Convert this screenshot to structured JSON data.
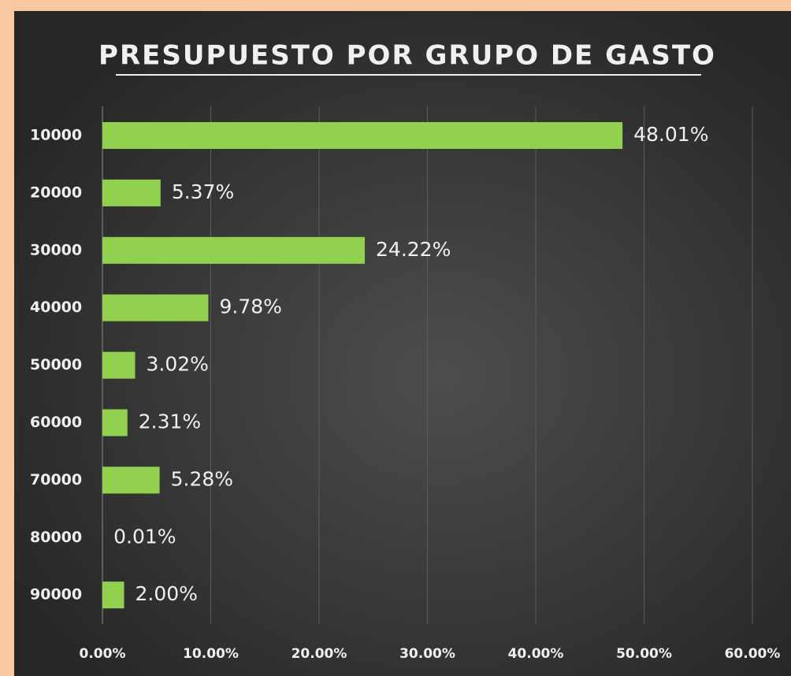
{
  "chart_data": {
    "type": "barh",
    "title": "PRESUPUESTO POR GRUPO DE GASTO",
    "categories": [
      "10000",
      "20000",
      "30000",
      "40000",
      "50000",
      "60000",
      "70000",
      "80000",
      "90000"
    ],
    "values": [
      48.01,
      5.37,
      24.22,
      9.78,
      3.02,
      2.31,
      5.28,
      0.01,
      2.0
    ],
    "value_labels": [
      "48.01%",
      "5.37%",
      "24.22%",
      "9.78%",
      "3.02%",
      "2.31%",
      "5.28%",
      "0.01%",
      "2.00%"
    ],
    "color": "#92d050",
    "xlim": [
      0,
      60
    ],
    "xticks": [
      {
        "value": 0,
        "label": "0.00%"
      },
      {
        "value": 10,
        "label": "10.00%"
      },
      {
        "value": 20,
        "label": "20.00%"
      },
      {
        "value": 30,
        "label": "30.00%"
      },
      {
        "value": 40,
        "label": "40.00%"
      },
      {
        "value": 50,
        "label": "50.00%"
      },
      {
        "value": 60,
        "label": "60.00%"
      }
    ],
    "grid": true
  }
}
